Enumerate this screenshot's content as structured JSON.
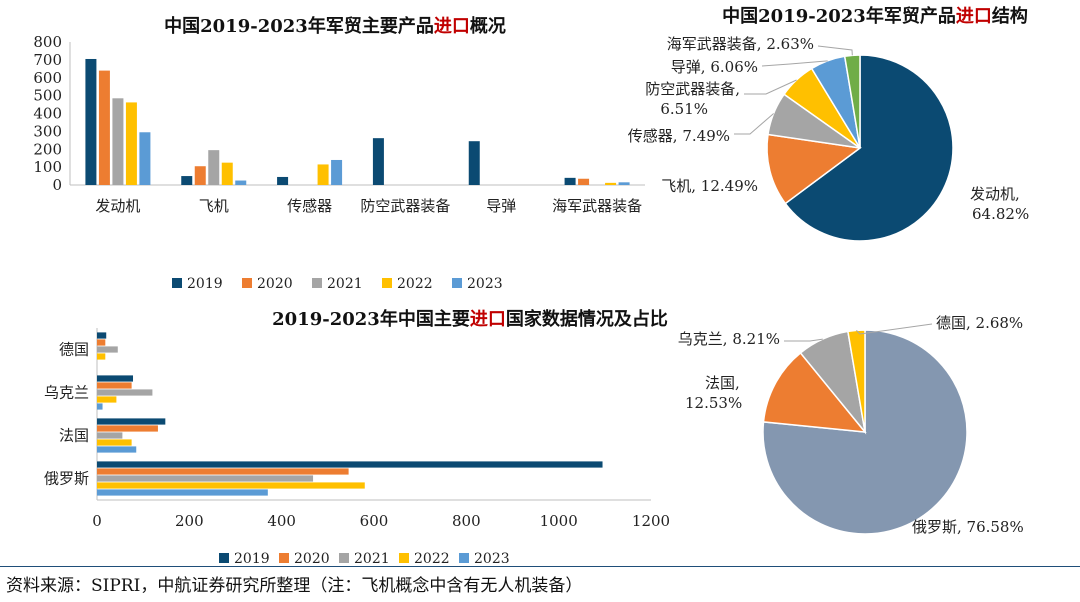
{
  "colors": {
    "y2019": "#0b4a72",
    "y2020": "#ed7d31",
    "y2021": "#a5a5a5",
    "y2022": "#ffc000",
    "y2023": "#5b9bd5",
    "pie1": [
      "#0b4a72",
      "#ed7d31",
      "#a5a5a5",
      "#ffc000",
      "#5b9bd5",
      "#70ad47"
    ],
    "pie2": [
      "#8497b0",
      "#ed7d31",
      "#a5a5a5",
      "#ffc000"
    ],
    "title_red": "#c00000",
    "axis": "#bfbfbf"
  },
  "chart_data": [
    {
      "type": "bar",
      "title_parts": [
        "中国2019-2023年军贸主要产品",
        "进口",
        "概况"
      ],
      "categories": [
        "发动机",
        "飞机",
        "传感器",
        "防空武器装备",
        "导弹",
        "海军武器装备"
      ],
      "ylim": [
        0,
        800
      ],
      "yticks": [
        0,
        100,
        200,
        300,
        400,
        500,
        600,
        700,
        800
      ],
      "series": [
        {
          "name": "2019",
          "values": [
            705,
            50,
            45,
            262,
            245,
            40
          ]
        },
        {
          "name": "2020",
          "values": [
            640,
            105,
            0,
            0,
            0,
            35
          ]
        },
        {
          "name": "2021",
          "values": [
            485,
            195,
            0,
            0,
            0,
            0
          ]
        },
        {
          "name": "2022",
          "values": [
            462,
            125,
            115,
            0,
            0,
            12
          ]
        },
        {
          "name": "2023",
          "values": [
            295,
            25,
            140,
            0,
            0,
            15
          ]
        }
      ],
      "legend_position": "bottom"
    },
    {
      "type": "pie",
      "title_parts": [
        "中国2019-2023年军贸产品",
        "进口",
        "结构"
      ],
      "slices": [
        {
          "label": "发动机, ",
          "pct_label": "64.82%",
          "value": 64.82
        },
        {
          "label": "飞机, 12.49%",
          "value": 12.49
        },
        {
          "label": "传感器, 7.49%",
          "value": 7.49
        },
        {
          "label": "防空武器装备,",
          "pct_label": "6.51%",
          "value": 6.51
        },
        {
          "label": "导弹, 6.06%",
          "value": 6.06
        },
        {
          "label": "海军武器装备, 2.63%",
          "value": 2.63
        }
      ]
    },
    {
      "type": "bar",
      "orientation": "horizontal",
      "title_parts": [
        "2019-2023年中国主要",
        "进口",
        "国家数据情况及占比"
      ],
      "categories": [
        "德国",
        "乌克兰",
        "法国",
        "俄罗斯"
      ],
      "xlim": [
        0,
        1200
      ],
      "xticks": [
        0,
        200,
        400,
        600,
        800,
        1000,
        1200
      ],
      "series": [
        {
          "name": "2019",
          "values": [
            20,
            78,
            148,
            1095
          ]
        },
        {
          "name": "2020",
          "values": [
            18,
            75,
            132,
            545
          ]
        },
        {
          "name": "2021",
          "values": [
            45,
            120,
            55,
            468
          ]
        },
        {
          "name": "2022",
          "values": [
            18,
            42,
            75,
            580
          ]
        },
        {
          "name": "2023",
          "values": [
            0,
            12,
            85,
            370
          ]
        }
      ],
      "legend_position": "bottom"
    },
    {
      "type": "pie",
      "slices": [
        {
          "label": "俄罗斯, 76.58%",
          "value": 76.58
        },
        {
          "label": "法国,",
          "pct_label": "12.53%",
          "value": 12.53
        },
        {
          "label": "乌克兰, 8.21%",
          "value": 8.21
        },
        {
          "label": "德国, 2.68%",
          "value": 2.68
        }
      ]
    }
  ],
  "source_note": "资料来源：SIPRI，中航证券研究所整理（注：飞机概念中含有无人机装备）"
}
